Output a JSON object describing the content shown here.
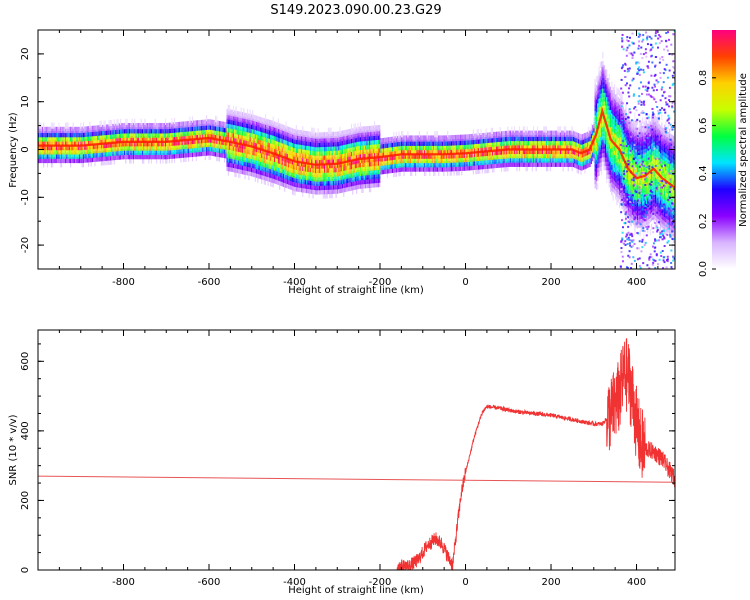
{
  "figure": {
    "title": "S149.2023.090.00.23.G29"
  },
  "chart_data": [
    {
      "type": "heatmap",
      "xlabel": "Height of straight line (km)",
      "ylabel": "Frequency (Hz)",
      "xlim": [
        -1000,
        490
      ],
      "ylim": [
        -25,
        25
      ],
      "x_ticks": [
        -800,
        -600,
        -400,
        -200,
        0,
        200,
        400
      ],
      "x_tick_labels": [
        "-800",
        "-600",
        "-400",
        "-200",
        "0",
        "200",
        "400"
      ],
      "y_ticks": [
        -20,
        -10,
        0,
        10,
        20
      ],
      "y_tick_labels": [
        "-20",
        "-10",
        "0",
        "10",
        "20"
      ],
      "ridge": {
        "x": [
          -1000,
          -900,
          -800,
          -700,
          -600,
          -550,
          -500,
          -450,
          -400,
          -350,
          -300,
          -250,
          -200,
          -150,
          -100,
          -50,
          0,
          50,
          100,
          150,
          200,
          250,
          270,
          290,
          305,
          320,
          340,
          360,
          380,
          400,
          420,
          440,
          460,
          490
        ],
        "frequency": [
          0.8,
          0.8,
          1.6,
          1.6,
          2.4,
          1.6,
          0.6,
          -0.8,
          -2.5,
          -3.2,
          -3.0,
          -2.0,
          -1.6,
          -1.0,
          -1.0,
          -1.0,
          -0.8,
          -0.4,
          0.0,
          0.0,
          0.0,
          0.0,
          -0.8,
          0.0,
          3.0,
          8.0,
          2.0,
          0.0,
          -4.0,
          -6.0,
          -5.5,
          -4.0,
          -6.0,
          -8.0
        ]
      },
      "colorbar": {
        "label": "Normalized spectral amplitude",
        "range": [
          0,
          1
        ],
        "ticks": [
          0.0,
          0.2,
          0.4,
          0.6,
          0.8
        ],
        "tick_labels": [
          "0.0",
          "0.2",
          "0.4",
          "0.6",
          "0.8"
        ],
        "colors": [
          "#ffffff",
          "#d8b4ff",
          "#8a00ff",
          "#1e00ff",
          "#00e5ff",
          "#00ff40",
          "#c8ff00",
          "#ffd000",
          "#ff4000",
          "#ff0080"
        ]
      },
      "grid": false
    },
    {
      "type": "line",
      "xlabel": "Height of straight line (km)",
      "ylabel": "SNR (10 * v/v)",
      "xlim": [
        -1000,
        490
      ],
      "ylim": [
        0,
        690
      ],
      "x_ticks": [
        -800,
        -600,
        -400,
        -200,
        0,
        200,
        400
      ],
      "x_tick_labels": [
        "-800",
        "-600",
        "-400",
        "-200",
        "0",
        "200",
        "400"
      ],
      "y_ticks": [
        0,
        200,
        400,
        600
      ],
      "y_tick_labels": [
        "0",
        "200",
        "400",
        "600"
      ],
      "series": [
        {
          "color": "#f03232",
          "x": [
            -160,
            -130,
            -110,
            -100,
            -90,
            -70,
            -55,
            -40,
            -30,
            -20,
            -10,
            0,
            10,
            20,
            30,
            40,
            50,
            80,
            120,
            160,
            200,
            240,
            260,
            280,
            300,
            320,
            340,
            360,
            370,
            380,
            390,
            400,
            410,
            420,
            440,
            460,
            490
          ],
          "values": [
            10,
            12,
            30,
            50,
            70,
            90,
            75,
            35,
            15,
            120,
            220,
            280,
            330,
            380,
            420,
            455,
            470,
            465,
            455,
            450,
            445,
            435,
            430,
            425,
            420,
            420,
            450,
            500,
            560,
            560,
            500,
            420,
            360,
            350,
            340,
            320,
            260
          ]
        },
        {
          "color": "#e85555",
          "x": [
            -1000,
            490
          ],
          "values": [
            270,
            252
          ]
        }
      ],
      "grid": false
    }
  ]
}
